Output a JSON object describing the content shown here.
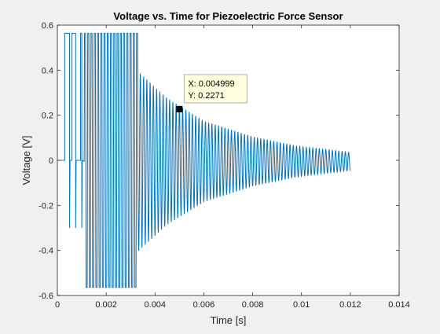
{
  "chart_data": {
    "type": "line",
    "title": "Voltage vs. Time for Piezoelectric Force Sensor",
    "xlabel": "Time [s]",
    "ylabel": "Voltage [V]",
    "xlim": [
      0,
      0.014
    ],
    "ylim": [
      -0.6,
      0.6
    ],
    "xticks": [
      0,
      0.002,
      0.004,
      0.006,
      0.008,
      0.01,
      0.012,
      0.014
    ],
    "xtick_labels": [
      "0",
      "0.002",
      "0.004",
      "0.006",
      "0.008",
      "0.01",
      "0.012",
      "0.014"
    ],
    "yticks": [
      -0.6,
      -0.4,
      -0.2,
      0,
      0.2,
      0.4,
      0.6
    ],
    "ytick_labels": [
      "-0.6",
      "-0.4",
      "-0.2",
      "0",
      "0.2",
      "0.4",
      "0.6"
    ],
    "grid": false,
    "line_color": "#0072bd",
    "signal": {
      "t_start": 0.0003,
      "t_end": 0.012,
      "oscillation_period": 0.0001333,
      "clip_level": 0.564,
      "clipped_until": 0.0033,
      "envelope_points": [
        [
          0.0033,
          0.4
        ],
        [
          0.0045,
          0.28
        ],
        [
          0.006,
          0.18
        ],
        [
          0.008,
          0.11
        ],
        [
          0.01,
          0.065
        ],
        [
          0.012,
          0.04
        ]
      ],
      "offset": -0.005,
      "initial_pulses": [
        {
          "t_start": 0.0003,
          "t_end": 0.0005,
          "level": 0.564
        },
        {
          "t_start": 0.0006,
          "t_end": 0.00075,
          "level": 0.564
        },
        {
          "t_start": 0.00095,
          "t_end": 0.001,
          "level": 0.564
        }
      ]
    },
    "datatip": {
      "x": 0.004999,
      "y": 0.2271,
      "x_text": "X: 0.004999",
      "y_text": "Y: 0.2271"
    }
  }
}
